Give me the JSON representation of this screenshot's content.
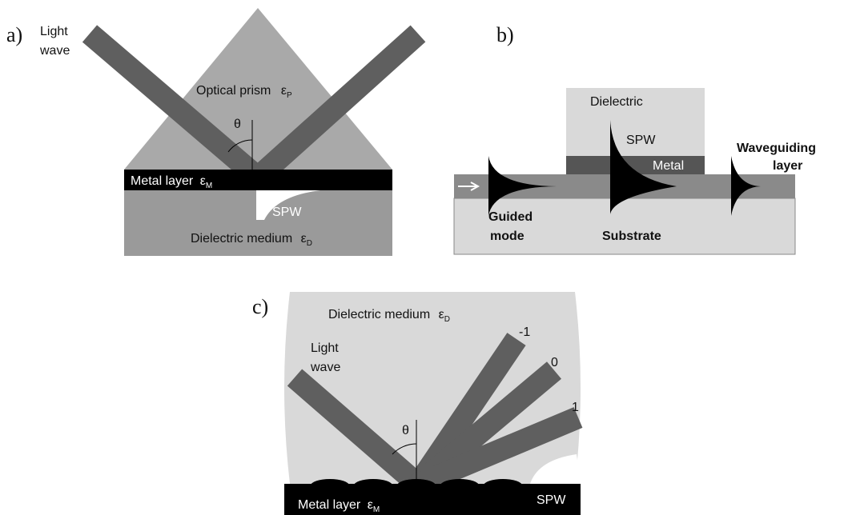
{
  "panel_a": {
    "label": "a)",
    "light_wave": [
      "Light",
      "wave"
    ],
    "prism": "Optical prism",
    "prism_eps": {
      "symbol": "ε",
      "sub": "P"
    },
    "theta": "θ",
    "metal": "Metal layer",
    "metal_eps": {
      "symbol": "ε",
      "sub": "M"
    },
    "spw": "SPW",
    "dielectric": "Dielectric medium",
    "dielectric_eps": {
      "symbol": "ε",
      "sub": "D"
    }
  },
  "panel_b": {
    "label": "b)",
    "dielectric": "Dielectric",
    "spw": "SPW",
    "metal": "Metal",
    "waveguiding": [
      "Waveguiding",
      "layer"
    ],
    "guided": [
      "Guided",
      "mode"
    ],
    "substrate": "Substrate"
  },
  "panel_c": {
    "label": "c)",
    "dielectric": "Dielectric medium",
    "dielectric_eps": {
      "symbol": "ε",
      "sub": "D"
    },
    "light_wave": [
      "Light",
      "wave"
    ],
    "orders": [
      "-1",
      "0",
      "1"
    ],
    "theta": "θ",
    "metal": "Metal layer",
    "metal_eps": {
      "symbol": "ε",
      "sub": "M"
    },
    "spw": "SPW"
  }
}
